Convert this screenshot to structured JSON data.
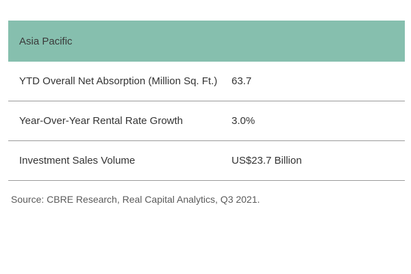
{
  "table": {
    "header": "Asia Pacific",
    "rows": [
      {
        "label": "YTD Overall Net Absorption (Million Sq. Ft.)",
        "value": "63.7"
      },
      {
        "label": "Year-Over-Year Rental Rate Growth",
        "value": "3.0%"
      },
      {
        "label": "Investment Sales Volume",
        "value": "US$23.7 Billion"
      }
    ]
  },
  "source": "Source: CBRE Research, Real Capital Analytics, Q3 2021.",
  "colors": {
    "header_bg": "#86bfae",
    "divider": "#9a9a9a"
  }
}
